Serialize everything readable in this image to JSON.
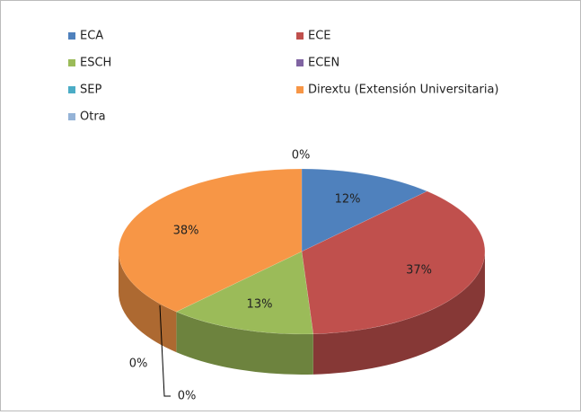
{
  "chart_data": {
    "type": "pie",
    "categories": [
      "ECA",
      "ECE",
      "ESCH",
      "ECEN",
      "SEP",
      "Dirextu (Extensión Universitaria)",
      "Otra"
    ],
    "values": [
      12,
      37,
      13,
      0,
      0,
      38,
      0
    ],
    "value_labels": [
      "12%",
      "37%",
      "13%",
      "0%",
      "0%",
      "38%",
      "0%"
    ],
    "colors": [
      "#4f81bd",
      "#c0504d",
      "#9bbb59",
      "#8064a2",
      "#4bacc6",
      "#f79646",
      "#95b3d7"
    ],
    "legend": "top"
  }
}
